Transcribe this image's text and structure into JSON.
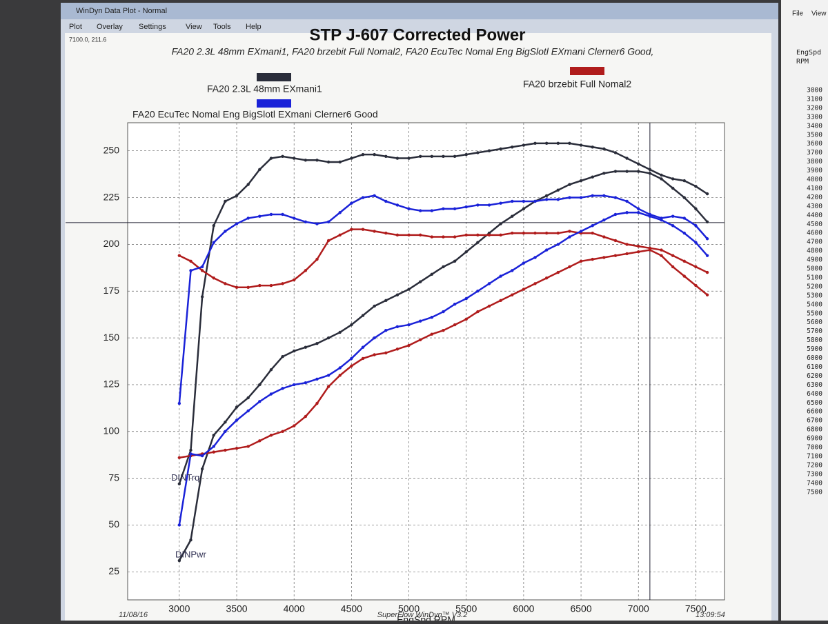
{
  "window": {
    "title": "WinDyn Data Plot - Normal",
    "menu": [
      "Plot",
      "Overlay",
      "Settings",
      "View",
      "Tools",
      "Help"
    ]
  },
  "side_panel": {
    "menu": [
      "File",
      "View"
    ],
    "header": [
      "EngSpd",
      "RPM"
    ],
    "rpm": [
      3000,
      3100,
      3200,
      3300,
      3400,
      3500,
      3600,
      3700,
      3800,
      3900,
      4000,
      4100,
      4200,
      4300,
      4400,
      4500,
      4600,
      4700,
      4800,
      4900,
      5000,
      5100,
      5200,
      5300,
      5400,
      5500,
      5600,
      5700,
      5800,
      5900,
      6000,
      6100,
      6200,
      6300,
      6400,
      6500,
      6600,
      6700,
      6800,
      6900,
      7000,
      7100,
      7200,
      7300,
      7400,
      7500
    ]
  },
  "footer": {
    "date": "11/08/16",
    "product": "SuperFlow WinDyn™ V3.2",
    "time": "13:09:54"
  },
  "chart_data": {
    "type": "line",
    "title": "STP J-607 Corrected Power",
    "subtitle": "FA20 2.3L 48mm EXmani1, FA20 brzebit Full Nomal2, FA20 EcuTec Nomal Eng BigSlotl EXmani Clerner6 Good,",
    "x_label": "EngSpd RPM",
    "curve_labels": [
      "DINTrq",
      "DINPwr"
    ],
    "cursor": {
      "x": 7100,
      "y": 211.6,
      "label": "7100.0, 211.6"
    },
    "xlim": [
      2550,
      7750
    ],
    "ylim": [
      10,
      265
    ],
    "xticks": [
      3000,
      3500,
      4000,
      4500,
      5000,
      5500,
      6000,
      6500,
      7000,
      7500
    ],
    "yticks": [
      25,
      50,
      75,
      100,
      125,
      150,
      175,
      200,
      225,
      250
    ],
    "grid": true,
    "x": [
      3000,
      3100,
      3200,
      3300,
      3400,
      3500,
      3600,
      3700,
      3800,
      3900,
      4000,
      4100,
      4200,
      4300,
      4400,
      4500,
      4600,
      4700,
      4800,
      4900,
      5000,
      5100,
      5200,
      5300,
      5400,
      5500,
      5600,
      5700,
      5800,
      5900,
      6000,
      6100,
      6200,
      6300,
      6400,
      6500,
      6600,
      6700,
      6800,
      6900,
      7000,
      7100,
      7200,
      7300,
      7400,
      7500,
      7600
    ],
    "series": [
      {
        "name": "FA20 2.3L 48mm EXmani1",
        "color": "#2a2d3a",
        "values": [
          72,
          90,
          172,
          210,
          223,
          226,
          232,
          240,
          246,
          247,
          246,
          245,
          245,
          244,
          244,
          246,
          248,
          248,
          247,
          246,
          246,
          247,
          247,
          247,
          247,
          248,
          249,
          250,
          251,
          252,
          253,
          254,
          254,
          254,
          254,
          253,
          252,
          251,
          249,
          246,
          243,
          240,
          237,
          235,
          234,
          231,
          227
        ]
      },
      {
        "name": "FA20 brzebit Full Nomal2",
        "color": "#b01c1c",
        "values": [
          194,
          191,
          186,
          182,
          179,
          177,
          177,
          178,
          178,
          179,
          181,
          186,
          192,
          202,
          205,
          208,
          208,
          207,
          206,
          205,
          205,
          205,
          204,
          204,
          204,
          205,
          205,
          205,
          205,
          206,
          206,
          206,
          206,
          206,
          207,
          206,
          206,
          204,
          202,
          200,
          199,
          198,
          197,
          194,
          191,
          188,
          185
        ]
      },
      {
        "name": "FA20 EcuTec Nomal Eng BigSlotl EXmani Clerner6 Good",
        "color": "#1a22d8",
        "values": [
          115,
          186,
          188,
          201,
          207,
          211,
          214,
          215,
          216,
          216,
          214,
          212,
          211,
          212,
          217,
          222,
          225,
          226,
          223,
          221,
          219,
          218,
          218,
          219,
          219,
          220,
          221,
          221,
          222,
          223,
          223,
          223,
          224,
          224,
          225,
          225,
          226,
          226,
          225,
          223,
          219,
          216,
          214,
          215,
          214,
          210,
          203
        ]
      }
    ],
    "power_series": [
      {
        "values": [
          31,
          42,
          80,
          98,
          105,
          113,
          118,
          125,
          133,
          140,
          143,
          145,
          147,
          150,
          153,
          157,
          162,
          167,
          170,
          173,
          176,
          180,
          184,
          188,
          191,
          196,
          201,
          206,
          211,
          215,
          219,
          223,
          226,
          229,
          232,
          234,
          236,
          238,
          239,
          239,
          239,
          238,
          235,
          230,
          225,
          219,
          212
        ]
      },
      {
        "values": [
          86,
          87,
          88,
          89,
          90,
          91,
          92,
          95,
          98,
          100,
          103,
          108,
          115,
          124,
          130,
          135,
          139,
          141,
          142,
          144,
          146,
          149,
          152,
          154,
          157,
          160,
          164,
          167,
          170,
          173,
          176,
          179,
          182,
          185,
          188,
          191,
          192,
          193,
          194,
          195,
          196,
          197,
          194,
          188,
          183,
          178,
          173
        ]
      },
      {
        "values": [
          50,
          88,
          87,
          92,
          100,
          106,
          111,
          116,
          120,
          123,
          125,
          126,
          128,
          130,
          134,
          139,
          145,
          150,
          154,
          156,
          157,
          159,
          161,
          164,
          168,
          171,
          175,
          179,
          183,
          186,
          190,
          193,
          197,
          200,
          204,
          207,
          210,
          213,
          216,
          217,
          217,
          215,
          213,
          210,
          206,
          201,
          194
        ]
      }
    ]
  }
}
